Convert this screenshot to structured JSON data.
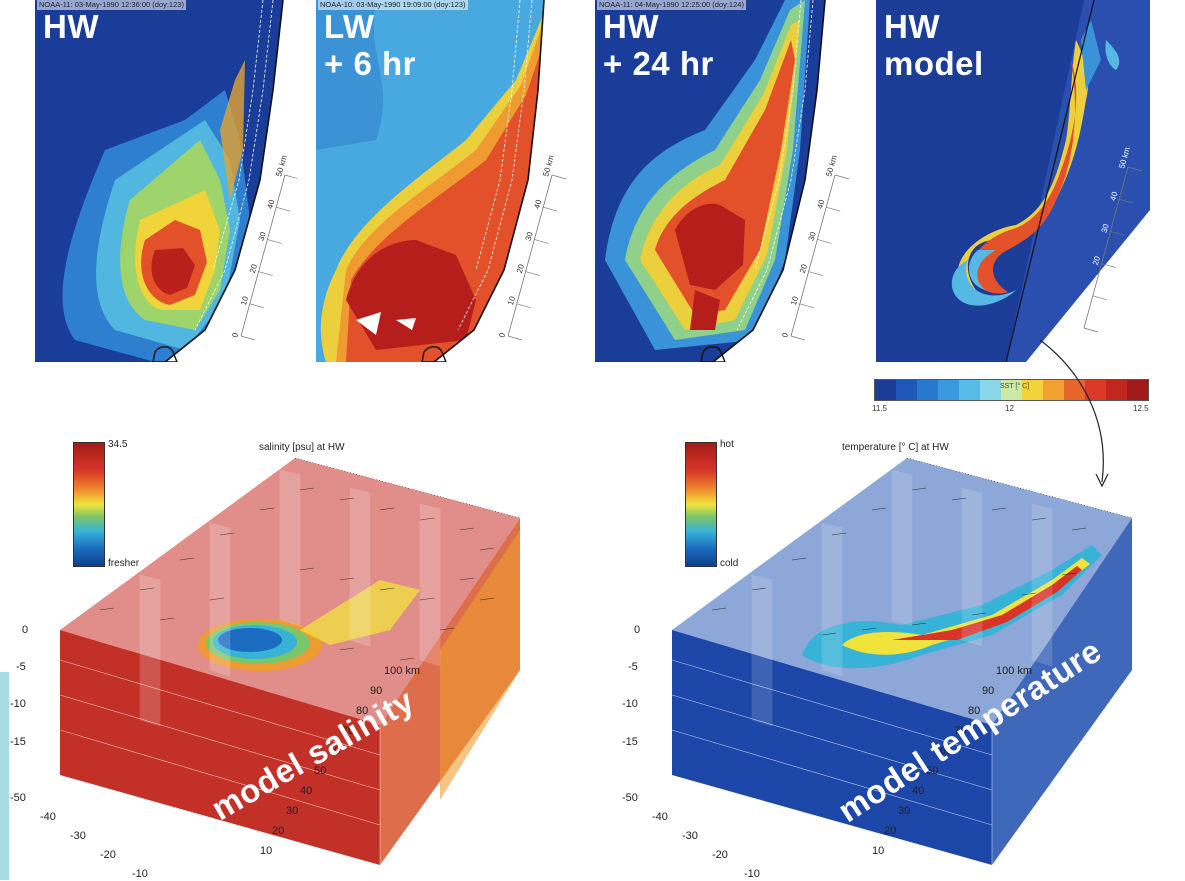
{
  "panels": [
    {
      "caption": "NOAA-11:  03-May-1990 12:36:00 (doy:123)",
      "label_line1": "HW",
      "label_line2": ""
    },
    {
      "caption": "NOAA-10:  03-May-1990 19:09:00 (doy:123)",
      "label_line1": "LW",
      "label_line2": "+ 6 hr"
    },
    {
      "caption": "NOAA-11:  04-May-1990 12:25:00 (doy:124)",
      "label_line1": "HW",
      "label_line2": "+ 24 hr"
    },
    {
      "caption": "",
      "label_line1": "HW",
      "label_line2": "model"
    }
  ],
  "scale_ticks": [
    "0",
    "10",
    "20",
    "30",
    "40",
    "50 km"
  ],
  "colorbar": {
    "title": "SST [° C]",
    "min": "11.5",
    "mid": "12",
    "max": "12.5",
    "colors": [
      "#1c3d97",
      "#1f57b8",
      "#2878cf",
      "#3a99de",
      "#57bde8",
      "#8bd7ea",
      "#cde7a6",
      "#f2d43a",
      "#f1a22f",
      "#e9642a",
      "#dc3a26",
      "#c3251f",
      "#a01a1a"
    ]
  },
  "salinity": {
    "title": "salinity [psu] at HW",
    "cbar_top": "34.5",
    "cbar_bottom": "fresher",
    "label": "model salinity"
  },
  "temperature": {
    "title": "temperature [° C] at HW",
    "cbar_top": "hot",
    "cbar_bottom": "cold",
    "label": "model temperature"
  },
  "depth_ticks": [
    "0",
    "-5",
    "-10",
    "-15"
  ],
  "x_ticks": [
    "-50",
    "-40",
    "-30",
    "-20",
    "-10"
  ],
  "y_ticks": [
    "10",
    "20",
    "30",
    "40",
    "50",
    "60",
    "70",
    "80",
    "90",
    "100 km"
  ],
  "colors": {
    "ocean_dark": "#1a3d9a",
    "warm": "#d8342a",
    "accent_bar": "#a9dbe4"
  }
}
